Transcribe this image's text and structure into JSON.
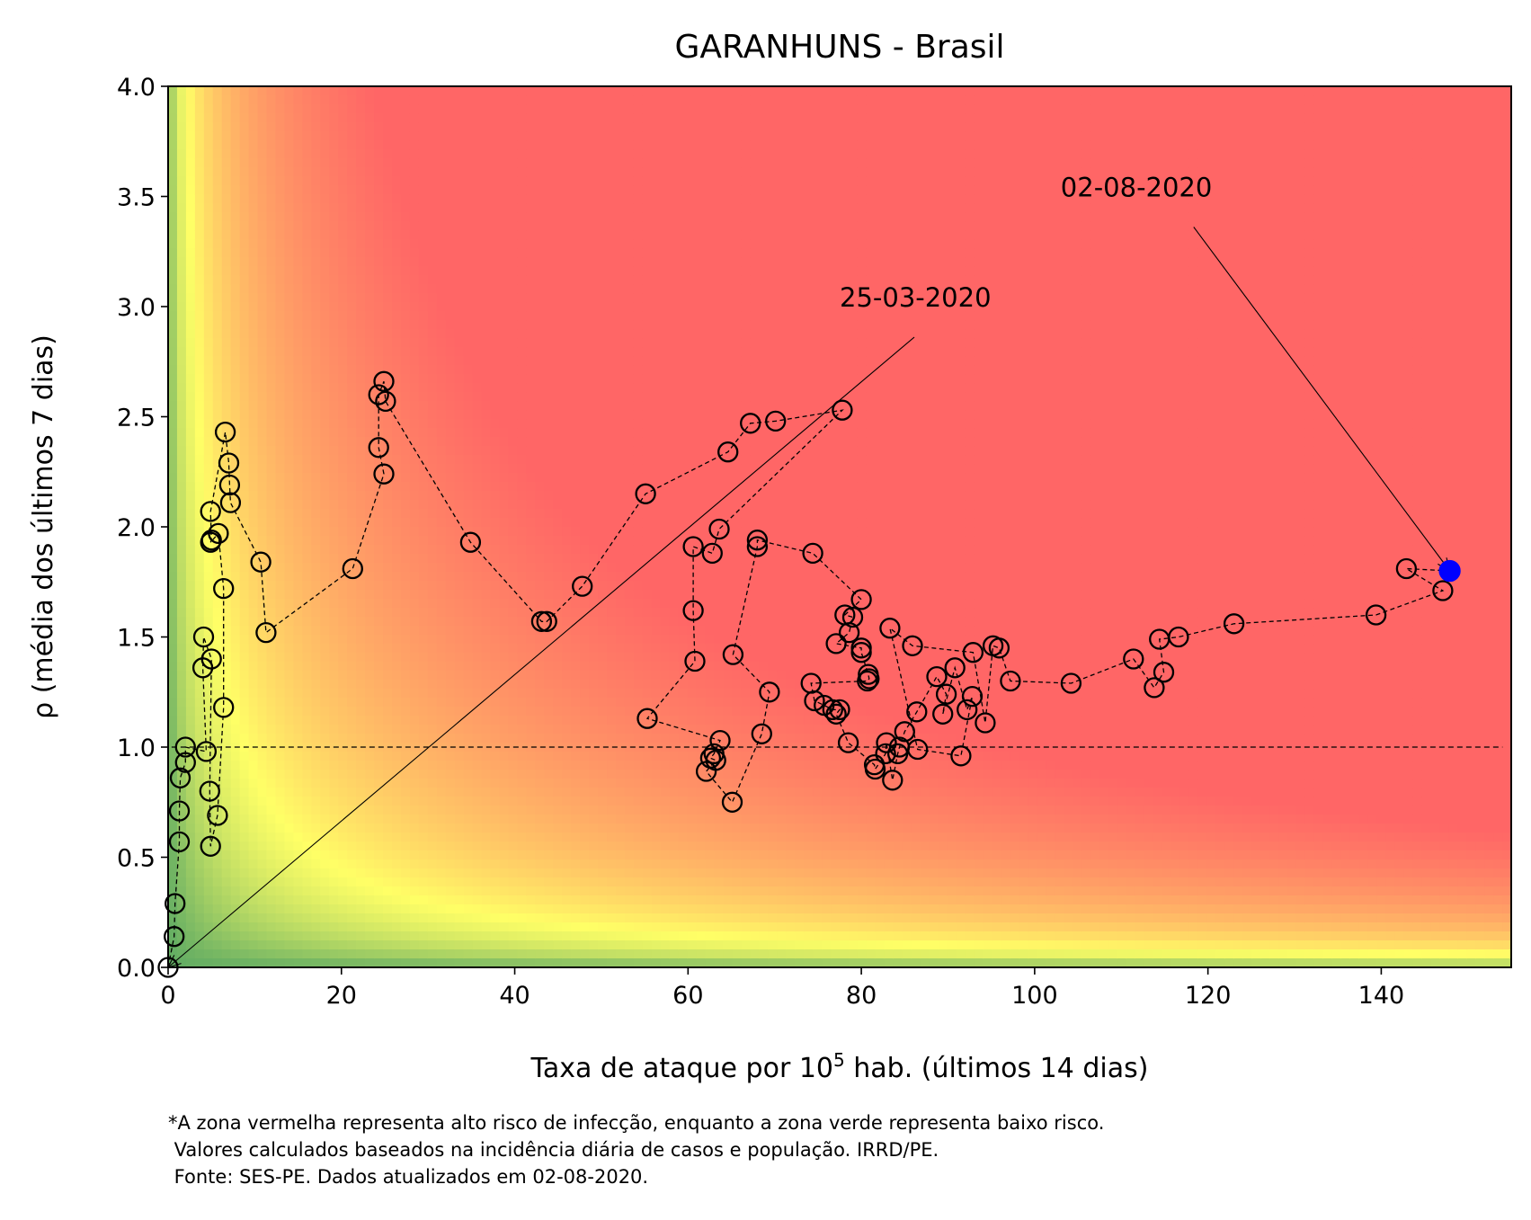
{
  "chart_data": {
    "type": "scatter",
    "title": "GARANHUNS - Brasil",
    "xlabel_prefix": "Taxa de ataque por 10",
    "xlabel_sup": "5",
    "xlabel_suffix": " hab. (últimos 14 dias)",
    "ylabel": "ρ (média dos últimos 7 dias)",
    "xlim": [
      0,
      155
    ],
    "ylim": [
      0,
      4
    ],
    "xticks": [
      0,
      20,
      40,
      60,
      80,
      100,
      120,
      140
    ],
    "yticks": [
      0.0,
      0.5,
      1.0,
      1.5,
      2.0,
      2.5,
      3.0,
      3.5,
      4.0
    ],
    "xtick_labels": [
      "0",
      "20",
      "40",
      "60",
      "80",
      "100",
      "120",
      "140"
    ],
    "ytick_labels": [
      "0.0",
      "0.5",
      "1.0",
      "1.5",
      "2.0",
      "2.5",
      "3.0",
      "3.5",
      "4.0"
    ],
    "reference_line_y": 1.0,
    "background": "risk zones: green = low, yellow = medium, red = high",
    "colors": {
      "green": "#63ad63",
      "yellow": "#ffff66",
      "red": "#ff6666",
      "marker_edge": "#000000",
      "last_point": "#0000ff"
    },
    "series": [
      {
        "points": [
          [
            0.0,
            0.0
          ],
          [
            0.7,
            0.14
          ],
          [
            0.8,
            0.29
          ],
          [
            1.3,
            0.57
          ],
          [
            1.3,
            0.71
          ],
          [
            1.4,
            0.86
          ],
          [
            2.0,
            0.93
          ],
          [
            2.0,
            1.0
          ],
          [
            4.4,
            0.98
          ],
          [
            4.0,
            1.36
          ],
          [
            4.1,
            1.5
          ],
          [
            5.0,
            1.4
          ],
          [
            4.8,
            0.8
          ],
          [
            4.9,
            0.55
          ],
          [
            5.7,
            0.69
          ],
          [
            6.4,
            1.18
          ],
          [
            6.4,
            1.72
          ],
          [
            5.8,
            1.97
          ],
          [
            4.9,
            1.93
          ],
          [
            5.0,
            1.94
          ],
          [
            4.9,
            2.07
          ],
          [
            6.6,
            2.43
          ],
          [
            7.0,
            2.29
          ],
          [
            7.1,
            2.19
          ],
          [
            7.2,
            2.11
          ],
          [
            10.7,
            1.84
          ],
          [
            11.3,
            1.52
          ],
          [
            21.3,
            1.81
          ],
          [
            24.9,
            2.24
          ],
          [
            24.3,
            2.36
          ],
          [
            24.3,
            2.6
          ],
          [
            24.9,
            2.66
          ],
          [
            25.1,
            2.57
          ],
          [
            34.9,
            1.93
          ],
          [
            43.1,
            1.57
          ],
          [
            43.7,
            1.57
          ],
          [
            47.8,
            1.73
          ],
          [
            55.1,
            2.15
          ],
          [
            64.6,
            2.34
          ],
          [
            67.2,
            2.47
          ],
          [
            70.1,
            2.48
          ],
          [
            77.8,
            2.53
          ],
          [
            63.6,
            1.99
          ],
          [
            62.8,
            1.88
          ],
          [
            60.6,
            1.91
          ],
          [
            60.6,
            1.62
          ],
          [
            60.8,
            1.39
          ],
          [
            55.3,
            1.13
          ],
          [
            63.7,
            1.03
          ],
          [
            63.0,
            0.97
          ],
          [
            62.6,
            0.95
          ],
          [
            63.2,
            0.94
          ],
          [
            62.1,
            0.89
          ],
          [
            65.1,
            0.75
          ],
          [
            68.5,
            1.06
          ],
          [
            69.4,
            1.25
          ],
          [
            65.2,
            1.42
          ],
          [
            68.0,
            1.91
          ],
          [
            68.0,
            1.94
          ],
          [
            74.4,
            1.88
          ],
          [
            80.0,
            1.67
          ],
          [
            78.1,
            1.6
          ],
          [
            79.0,
            1.59
          ],
          [
            78.6,
            1.52
          ],
          [
            77.1,
            1.47
          ],
          [
            80.0,
            1.45
          ],
          [
            80.0,
            1.43
          ],
          [
            80.8,
            1.33
          ],
          [
            80.9,
            1.31
          ],
          [
            80.7,
            1.3
          ],
          [
            74.2,
            1.29
          ],
          [
            74.6,
            1.21
          ],
          [
            75.7,
            1.19
          ],
          [
            76.7,
            1.17
          ],
          [
            77.5,
            1.17
          ],
          [
            77.1,
            1.15
          ],
          [
            78.5,
            1.02
          ],
          [
            81.5,
            0.92
          ],
          [
            81.6,
            0.9
          ],
          [
            82.8,
            0.97
          ],
          [
            82.9,
            1.02
          ],
          [
            83.6,
            0.85
          ],
          [
            84.2,
            0.97
          ],
          [
            84.4,
            1.0
          ],
          [
            85.0,
            1.07
          ],
          [
            86.4,
            1.16
          ],
          [
            88.7,
            1.32
          ],
          [
            89.8,
            1.24
          ],
          [
            89.4,
            1.15
          ],
          [
            90.8,
            1.36
          ],
          [
            92.2,
            1.17
          ],
          [
            92.8,
            1.23
          ],
          [
            91.5,
            0.96
          ],
          [
            86.5,
            0.99
          ],
          [
            83.3,
            1.54
          ],
          [
            85.9,
            1.46
          ],
          [
            92.9,
            1.43
          ],
          [
            94.3,
            1.11
          ],
          [
            95.2,
            1.46
          ],
          [
            95.9,
            1.45
          ],
          [
            97.2,
            1.3
          ],
          [
            104.2,
            1.29
          ],
          [
            111.4,
            1.4
          ],
          [
            113.8,
            1.27
          ],
          [
            114.9,
            1.34
          ],
          [
            114.4,
            1.49
          ],
          [
            116.6,
            1.5
          ],
          [
            123.0,
            1.56
          ],
          [
            139.4,
            1.6
          ],
          [
            147.1,
            1.71
          ],
          [
            142.9,
            1.81
          ],
          [
            147.9,
            1.8
          ]
        ]
      }
    ],
    "annotations": [
      {
        "text": "25-03-2020",
        "point": [
          0.0,
          0.0
        ],
        "text_pos": [
          77.5,
          3.0
        ]
      },
      {
        "text": "02-08-2020",
        "point": [
          147.9,
          1.8
        ],
        "text_pos": [
          103.0,
          3.5
        ]
      }
    ],
    "footnote": [
      "*A zona vermelha representa alto risco de infecção, enquanto a zona verde representa baixo risco.",
      " Valores calculados baseados na incidência diária de casos e população. IRRD/PE.",
      " Fonte: SES-PE. Dados atualizados em 02-08-2020."
    ]
  }
}
